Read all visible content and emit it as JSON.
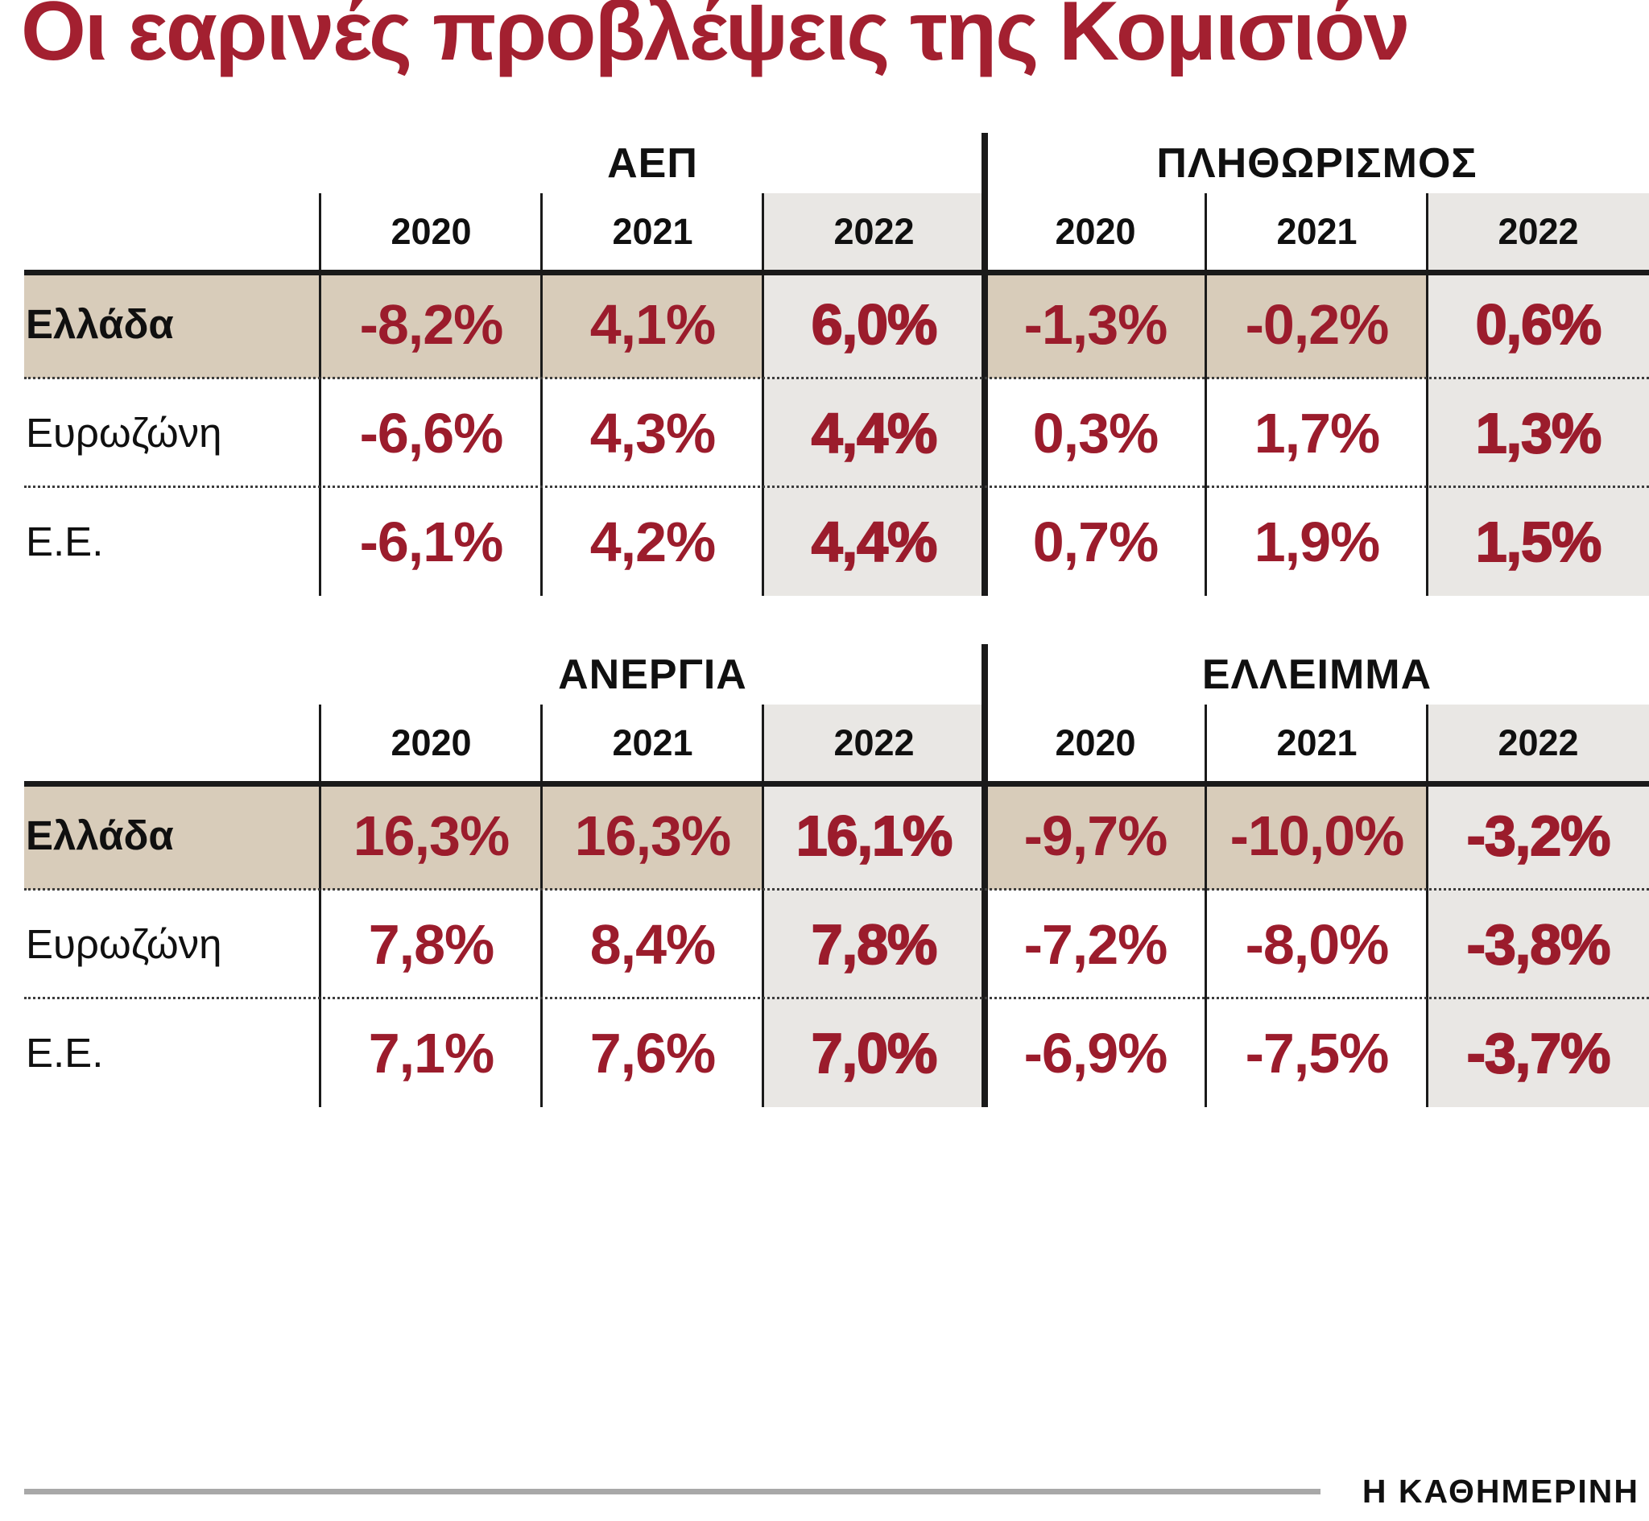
{
  "title": "Οι εαρινές προβλέψεις της Κομισιόν",
  "footer": {
    "source": "Η ΚΑΘΗΜΕΡΙΝΗ"
  },
  "colors": {
    "accent": "#9b1c2c",
    "title": "#a32030",
    "highlight_row": "#d8ccba",
    "highlight_col": "#e9e7e4",
    "footer_line": "#a8a8a8"
  },
  "chart_data": [
    {
      "type": "table",
      "title": "ΑΕΠ",
      "columns": [
        "2020",
        "2021",
        "2022"
      ],
      "rows": [
        {
          "label": "Ελλάδα",
          "values": [
            "-8,2%",
            "4,1%",
            "6,0%"
          ]
        },
        {
          "label": "Ευρωζώνη",
          "values": [
            "-6,6%",
            "4,3%",
            "4,4%"
          ]
        },
        {
          "label": "Ε.Ε.",
          "values": [
            "-6,1%",
            "4,2%",
            "4,4%"
          ]
        }
      ]
    },
    {
      "type": "table",
      "title": "ΠΛΗΘΩΡΙΣΜΟΣ",
      "columns": [
        "2020",
        "2021",
        "2022"
      ],
      "rows": [
        {
          "label": "Ελλάδα",
          "values": [
            "-1,3%",
            "-0,2%",
            "0,6%"
          ]
        },
        {
          "label": "Ευρωζώνη",
          "values": [
            "0,3%",
            "1,7%",
            "1,3%"
          ]
        },
        {
          "label": "Ε.Ε.",
          "values": [
            "0,7%",
            "1,9%",
            "1,5%"
          ]
        }
      ]
    },
    {
      "type": "table",
      "title": "ΑΝΕΡΓΙΑ",
      "columns": [
        "2020",
        "2021",
        "2022"
      ],
      "rows": [
        {
          "label": "Ελλάδα",
          "values": [
            "16,3%",
            "16,3%",
            "16,1%"
          ]
        },
        {
          "label": "Ευρωζώνη",
          "values": [
            "7,8%",
            "8,4%",
            "7,8%"
          ]
        },
        {
          "label": "Ε.Ε.",
          "values": [
            "7,1%",
            "7,6%",
            "7,0%"
          ]
        }
      ]
    },
    {
      "type": "table",
      "title": "ΕΛΛΕΙΜΜΑ",
      "columns": [
        "2020",
        "2021",
        "2022"
      ],
      "rows": [
        {
          "label": "Ελλάδα",
          "values": [
            "-9,7%",
            "-10,0%",
            "-3,2%"
          ]
        },
        {
          "label": "Ευρωζώνη",
          "values": [
            "-7,2%",
            "-8,0%",
            "-3,8%"
          ]
        },
        {
          "label": "Ε.Ε.",
          "values": [
            "-6,9%",
            "-7,5%",
            "-3,7%"
          ]
        }
      ]
    }
  ]
}
